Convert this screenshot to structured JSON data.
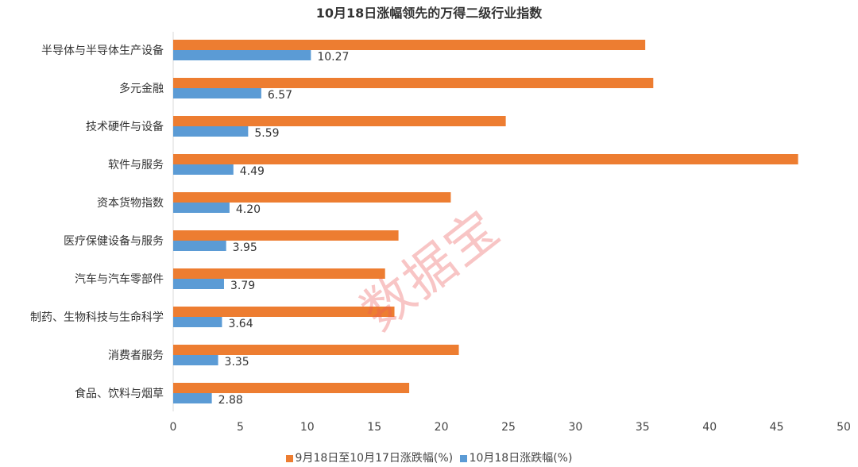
{
  "chart_data": {
    "type": "bar",
    "orientation": "horizontal",
    "title": "10月18日涨幅领先的万得二级行业指数",
    "categories": [
      "半导体与半导体生产设备",
      "多元金融",
      "技术硬件与设备",
      "软件与服务",
      "资本货物指数",
      "医疗保健设备与服务",
      "汽车与汽车零部件",
      "制药、生物科技与生命科学",
      "消费者服务",
      "食品、饮料与烟草"
    ],
    "series": [
      {
        "name": "9月18日至10月17日涨跌幅(%)",
        "color": "#ED7D31",
        "values": [
          35.2,
          35.8,
          24.8,
          46.6,
          20.7,
          16.8,
          15.8,
          16.5,
          21.3,
          17.6
        ],
        "data_labels": false
      },
      {
        "name": "10月18日涨跌幅(%)",
        "color": "#5B9BD5",
        "values": [
          10.27,
          6.57,
          5.59,
          4.49,
          4.2,
          3.95,
          3.79,
          3.64,
          3.35,
          2.88
        ],
        "data_labels": true
      }
    ],
    "value_labels": [
      "10.27",
      "6.57",
      "5.59",
      "4.49",
      "4.20",
      "3.95",
      "3.79",
      "3.64",
      "3.35",
      "2.88"
    ],
    "xlim": [
      0,
      50
    ],
    "xticks": [
      "0",
      "5",
      "10",
      "15",
      "20",
      "25",
      "30",
      "35",
      "40",
      "45",
      "50"
    ],
    "grid": false,
    "legend": "bottom"
  },
  "watermark": "数据宝"
}
